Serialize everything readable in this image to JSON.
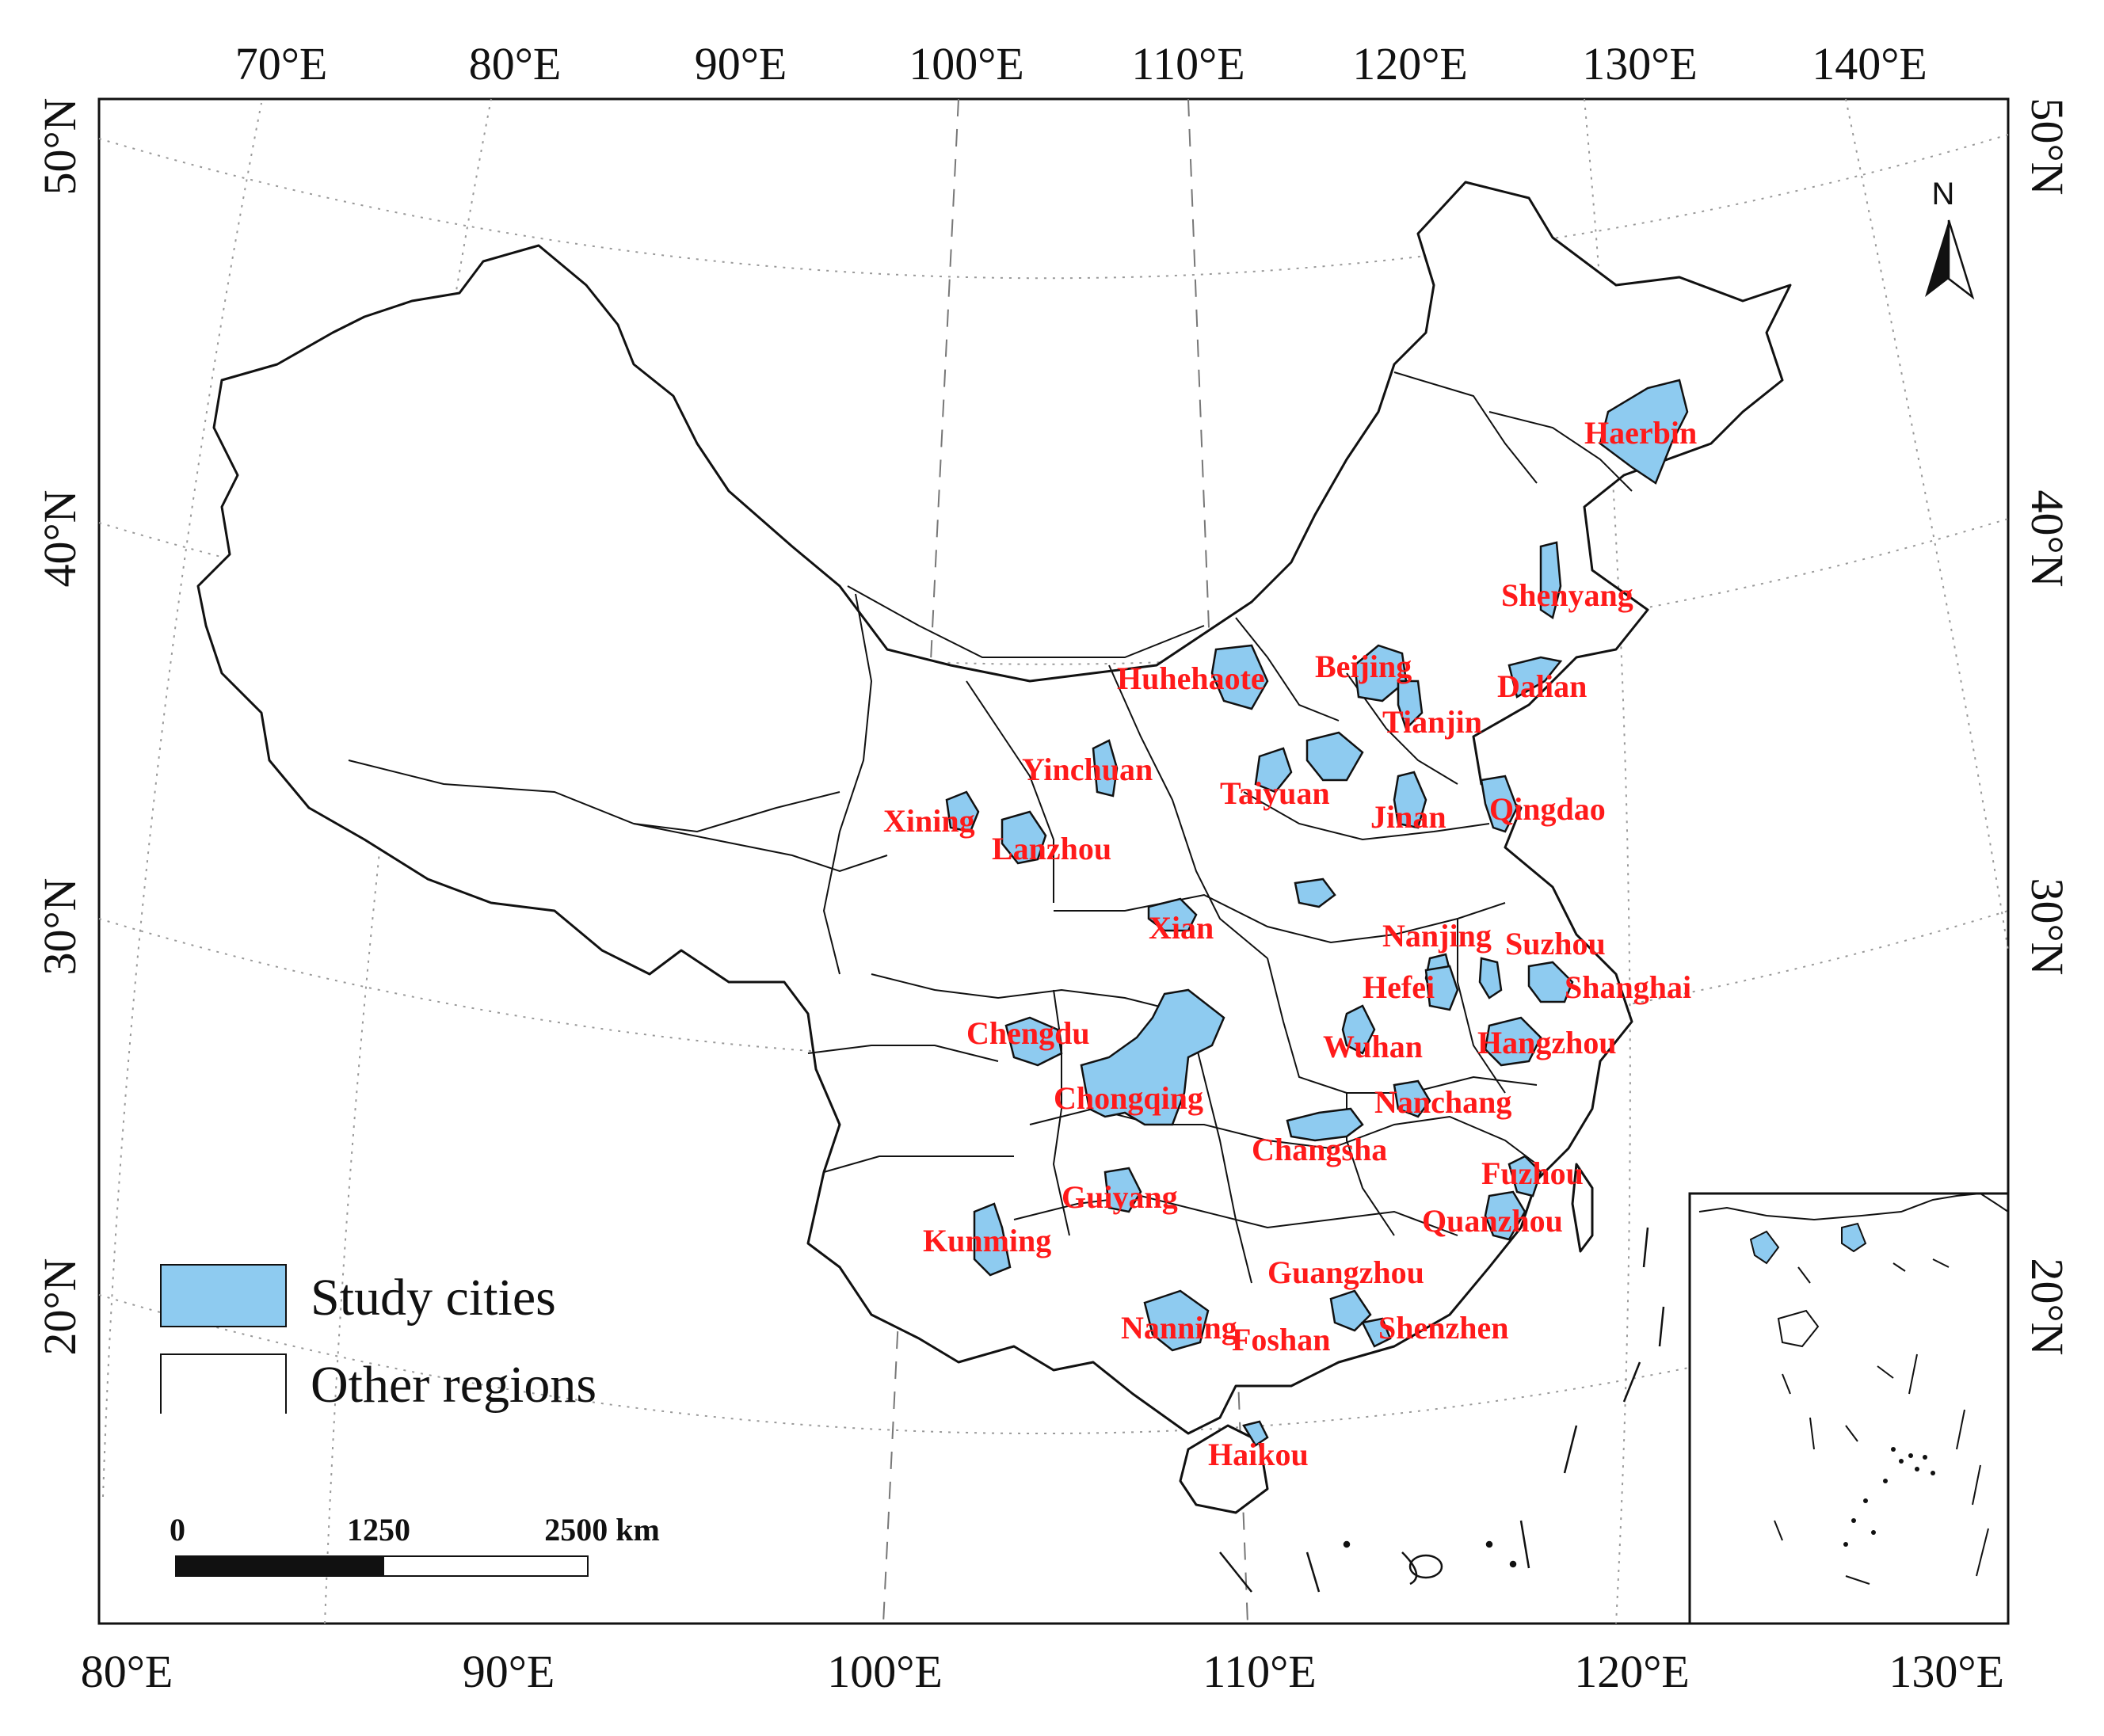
{
  "map": {
    "top_lon_labels": [
      "70°E",
      "80°E",
      "90°E",
      "100°E",
      "110°E",
      "120°E",
      "130°E",
      "140°E"
    ],
    "bottom_lon_labels": [
      "80°E",
      "90°E",
      "100°E",
      "110°E",
      "120°E",
      "130°E"
    ],
    "lat_labels": [
      "50°N",
      "40°N",
      "30°N",
      "20°N"
    ],
    "colors": {
      "study_city_fill": "#8ecbf0",
      "label": "#ff1a1a",
      "boundary": "#111111"
    },
    "cities": [
      {
        "name": "Haerbin"
      },
      {
        "name": "Shenyang"
      },
      {
        "name": "Dalian"
      },
      {
        "name": "Beijing"
      },
      {
        "name": "Tianjin"
      },
      {
        "name": "Huhehaote"
      },
      {
        "name": "Taiyuan"
      },
      {
        "name": "Jinan"
      },
      {
        "name": "Qingdao"
      },
      {
        "name": "Yinchuan"
      },
      {
        "name": "Xining"
      },
      {
        "name": "Lanzhou"
      },
      {
        "name": "Xian"
      },
      {
        "name": "Nanjing"
      },
      {
        "name": "Suzhou"
      },
      {
        "name": "Shanghai"
      },
      {
        "name": "Hefei"
      },
      {
        "name": "Wuhan"
      },
      {
        "name": "Hangzhou"
      },
      {
        "name": "Chengdu"
      },
      {
        "name": "Chongqing"
      },
      {
        "name": "Nanchang"
      },
      {
        "name": "Changsha"
      },
      {
        "name": "Fuzhou"
      },
      {
        "name": "Quanzhou"
      },
      {
        "name": "Guiyang"
      },
      {
        "name": "Kunming"
      },
      {
        "name": "Guangzhou"
      },
      {
        "name": "Nanning"
      },
      {
        "name": "Foshan"
      },
      {
        "name": "Shenzhen"
      },
      {
        "name": "Haikou"
      }
    ]
  },
  "legend": {
    "study_label": "Study cities",
    "other_label": "Other regions"
  },
  "scale": {
    "labels": [
      "0",
      "1250",
      "2500 km"
    ]
  },
  "north": {
    "label": "N"
  }
}
